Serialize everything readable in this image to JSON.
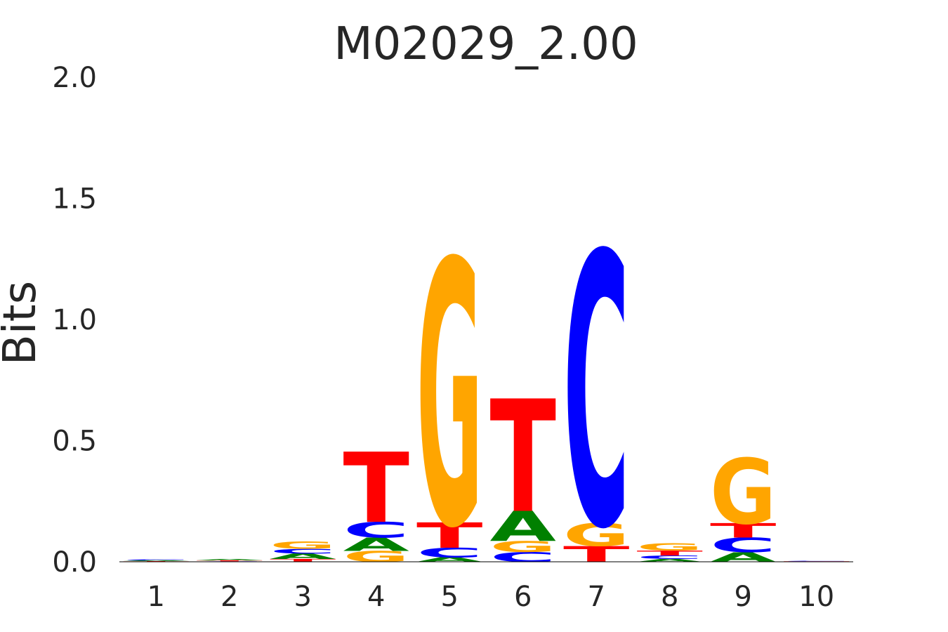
{
  "chart_data": {
    "type": "sequence-logo",
    "title": "M02029_2.00",
    "ylabel": "Bits",
    "ylim": [
      0,
      2.0
    ],
    "yticks": [
      "0.0",
      "0.5",
      "1.0",
      "1.5",
      "2.0"
    ],
    "positions": [
      "1",
      "2",
      "3",
      "4",
      "5",
      "6",
      "7",
      "8",
      "9",
      "10"
    ],
    "colors": {
      "A": "#008000",
      "C": "#0000ff",
      "G": "#ffa500",
      "T": "#ff0000"
    },
    "columns": [
      [
        {
          "base": "T",
          "bits": 0.003
        },
        {
          "base": "A",
          "bits": 0.003
        },
        {
          "base": "C",
          "bits": 0.004
        }
      ],
      [
        {
          "base": "C",
          "bits": 0.002
        },
        {
          "base": "T",
          "bits": 0.004
        },
        {
          "base": "A",
          "bits": 0.006
        }
      ],
      [
        {
          "base": "T",
          "bits": 0.012
        },
        {
          "base": "A",
          "bits": 0.022
        },
        {
          "base": "C",
          "bits": 0.019
        },
        {
          "base": "G",
          "bits": 0.03
        }
      ],
      [
        {
          "base": "G",
          "bits": 0.045
        },
        {
          "base": "A",
          "bits": 0.055
        },
        {
          "base": "C",
          "bits": 0.065
        },
        {
          "base": "T",
          "bits": 0.29
        }
      ],
      [
        {
          "base": "A",
          "bits": 0.018
        },
        {
          "base": "C",
          "bits": 0.04
        },
        {
          "base": "T",
          "bits": 0.105
        },
        {
          "base": "G",
          "bits": 1.09
        }
      ],
      [
        {
          "base": "C",
          "bits": 0.04
        },
        {
          "base": "G",
          "bits": 0.045
        },
        {
          "base": "A",
          "bits": 0.125
        },
        {
          "base": "T",
          "bits": 0.465
        }
      ],
      [
        {
          "base": "T",
          "bits": 0.065
        },
        {
          "base": "G",
          "bits": 0.095
        },
        {
          "base": "C",
          "bits": 1.125
        }
      ],
      [
        {
          "base": "A",
          "bits": 0.012
        },
        {
          "base": "C",
          "bits": 0.014
        },
        {
          "base": "T",
          "bits": 0.02
        },
        {
          "base": "G",
          "bits": 0.03
        }
      ],
      [
        {
          "base": "A",
          "bits": 0.04
        },
        {
          "base": "C",
          "bits": 0.06
        },
        {
          "base": "T",
          "bits": 0.06
        },
        {
          "base": "G",
          "bits": 0.27
        }
      ],
      [
        {
          "base": "T",
          "bits": 0.002
        },
        {
          "base": "C",
          "bits": 0.002
        }
      ]
    ]
  }
}
